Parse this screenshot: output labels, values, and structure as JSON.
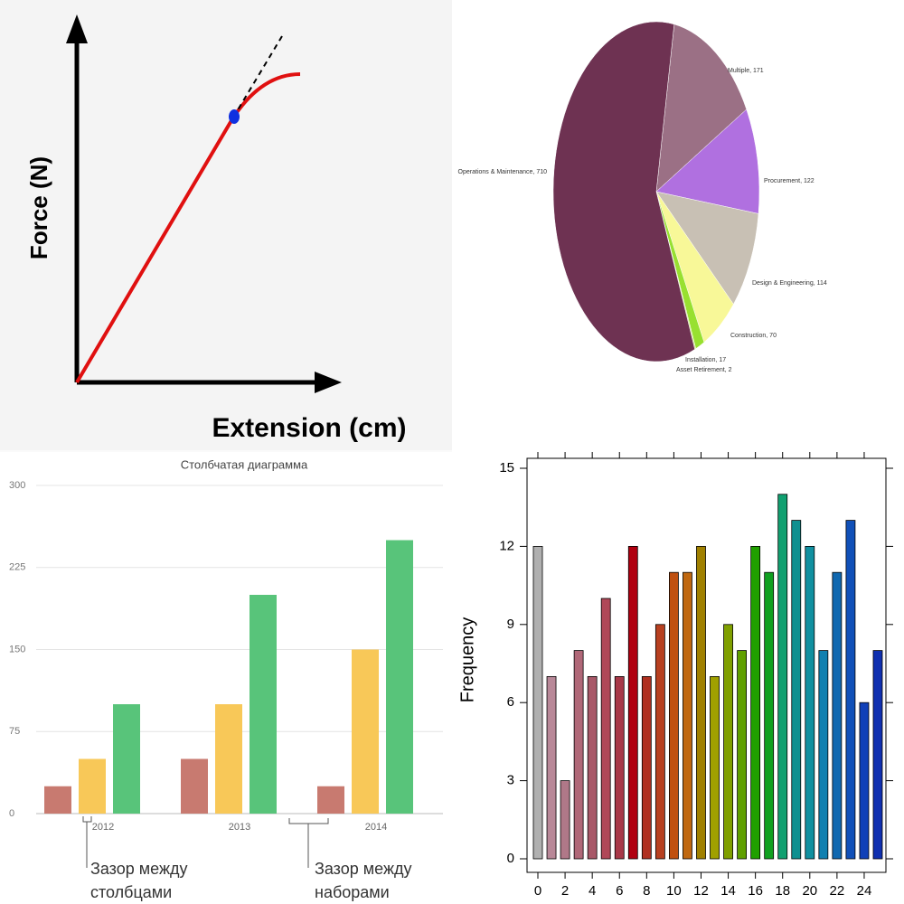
{
  "chart_data": [
    {
      "type": "line",
      "xlabel": "Extension (cm)",
      "ylabel": "Force (N)"
    },
    {
      "type": "pie",
      "values": [
        171,
        122,
        114,
        70,
        17,
        2,
        710
      ],
      "value_labels": [
        "Multiple, 171",
        "Procurement, 122",
        "Design & Engineering, 114",
        "Construction, 70",
        "Installation, 17",
        "Asset Retirement, 2",
        "Operations & Maintenance, 710"
      ],
      "colors": [
        "#9b7085",
        "#b070e0",
        "#c8c0b4",
        "#f8f898",
        "#98e030",
        "#c8e870",
        "#6e3252"
      ]
    },
    {
      "type": "grouped_bar",
      "title": "Столбчатая диаграмма",
      "categories": [
        "2012",
        "2013",
        "2014"
      ],
      "series": [
        {
          "color": "#c87a70",
          "values": [
            25,
            50,
            25
          ]
        },
        {
          "color": "#f8c858",
          "values": [
            50,
            100,
            150
          ]
        },
        {
          "color": "#58c47a",
          "values": [
            100,
            200,
            250
          ]
        }
      ],
      "ylim": [
        0,
        300
      ],
      "yticks": [
        0,
        75,
        150,
        225,
        300
      ],
      "grid": true,
      "annotations": [
        [
          "Зазор между",
          "столбцами"
        ],
        [
          "Зазор между",
          "наборами"
        ]
      ]
    },
    {
      "type": "bar",
      "ylabel": "Frequency",
      "categories": [
        0,
        null,
        2,
        null,
        4,
        null,
        6,
        null,
        8,
        null,
        10,
        null,
        12,
        null,
        14,
        null,
        16,
        null,
        18,
        null,
        20,
        null,
        22,
        null,
        24,
        null
      ],
      "values": [
        12,
        7,
        3,
        8,
        7,
        10,
        7,
        12,
        7,
        9,
        11,
        11,
        12,
        7,
        9,
        8,
        12,
        11,
        14,
        13,
        12,
        8,
        11,
        13,
        6,
        8
      ],
      "colors": [
        "#b0b0b0",
        "#b88898",
        "#b07888",
        "#b06878",
        "#a85868",
        "#b04858",
        "#a83848",
        "#b00010",
        "#b03020",
        "#b84020",
        "#c05010",
        "#c06810",
        "#a08000",
        "#a0a000",
        "#80a000",
        "#60a000",
        "#20a000",
        "#10a020",
        "#10a070",
        "#109090",
        "#1090a0",
        "#1080b0",
        "#1068b0",
        "#1050b8",
        "#1040b8",
        "#1030b0"
      ],
      "ylim": [
        0,
        15
      ],
      "yticks": [
        0,
        3,
        6,
        9,
        12,
        15
      ]
    }
  ]
}
